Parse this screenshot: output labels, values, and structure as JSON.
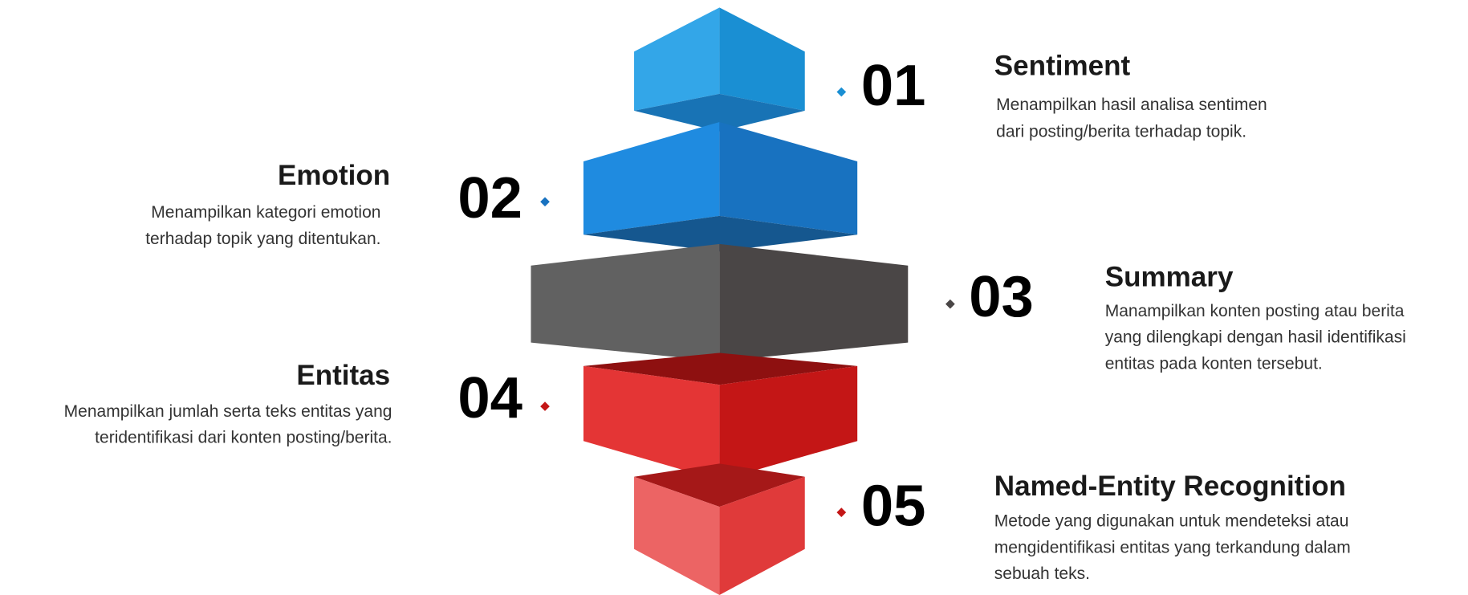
{
  "items": [
    {
      "number": "01",
      "title": "Sentiment",
      "lines": [
        "Menampilkan hasil analisa sentimen",
        "dari posting/berita terhadap topik."
      ]
    },
    {
      "number": "02",
      "title": "Emotion",
      "lines": [
        "Menampilkan kategori emotion",
        "terhadap topik yang ditentukan."
      ]
    },
    {
      "number": "03",
      "title": "Summary",
      "lines": [
        "Manampilkan konten posting atau berita",
        "yang dilengkapi dengan hasil identifikasi",
        "entitas pada konten tersebut."
      ]
    },
    {
      "number": "04",
      "title": "Entitas",
      "lines": [
        "Menampilkan jumlah serta teks entitas yang",
        "teridentifikasi dari konten posting/berita."
      ]
    },
    {
      "number": "05",
      "title": "Named-Entity Recognition",
      "lines": [
        "Metode yang digunakan untuk mendeteksi atau",
        "mengidentifikasi entitas yang terkandung dalam",
        "sebuah teks."
      ]
    }
  ]
}
